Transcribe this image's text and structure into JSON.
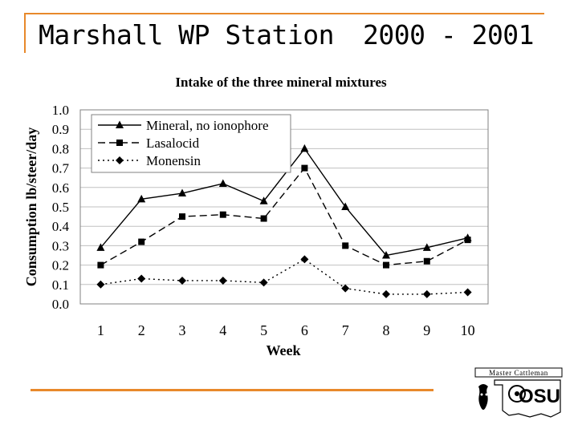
{
  "slide": {
    "title_left": "Marshall WP Station",
    "title_right": "2000 - 2001"
  },
  "colors": {
    "accent": "#e8892b",
    "text": "#000000",
    "gridline": "#c0c0c0"
  },
  "logo": {
    "banner": "Master Cattleman",
    "mark": "OSU",
    "icons": [
      "cow-head-icon",
      "oklahoma-outline-icon"
    ]
  },
  "chart_data": {
    "type": "line",
    "title": "Intake of the three mineral mixtures",
    "xlabel": "Week",
    "ylabel": "Consumption lb/steer/day",
    "categories": [
      "1",
      "2",
      "3",
      "4",
      "5",
      "6",
      "7",
      "8",
      "9",
      "10"
    ],
    "ylim": [
      0,
      1.0
    ],
    "yticks": [
      "0.0",
      "0.1",
      "0.2",
      "0.3",
      "0.4",
      "0.5",
      "0.6",
      "0.7",
      "0.8",
      "0.9",
      "1.0"
    ],
    "grid": "horizontal",
    "legend_position": "top-left",
    "series": [
      {
        "name": "Mineral, no ionophore",
        "marker": "triangle",
        "line": "solid",
        "values": [
          0.29,
          0.54,
          0.57,
          0.62,
          0.53,
          0.8,
          0.5,
          0.25,
          0.29,
          0.34
        ]
      },
      {
        "name": "Lasalocid",
        "marker": "square",
        "line": "dashed",
        "values": [
          0.2,
          0.32,
          0.45,
          0.46,
          0.44,
          0.7,
          0.3,
          0.2,
          0.22,
          0.33
        ]
      },
      {
        "name": "Monensin",
        "marker": "diamond",
        "line": "dotted",
        "values": [
          0.1,
          0.13,
          0.12,
          0.12,
          0.11,
          0.23,
          0.08,
          0.05,
          0.05,
          0.06
        ]
      }
    ]
  }
}
